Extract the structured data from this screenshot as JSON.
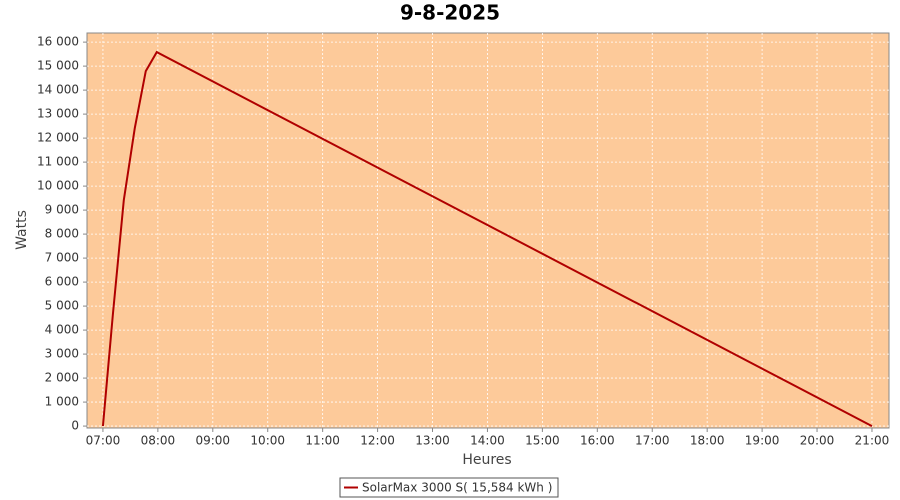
{
  "chart_data": {
    "type": "line",
    "title": "9-8-2025",
    "x_label": "Heures",
    "y_label": "Watts",
    "x": [
      7.0,
      7.18,
      7.38,
      7.58,
      7.78,
      7.98,
      21.0
    ],
    "series": [
      {
        "name": "SolarMax 3000 S( 15,584 kWh )",
        "color": "#b00000",
        "values": [
          0,
          4625,
          9417,
          12417,
          14792,
          15583,
          0
        ]
      }
    ],
    "xlim": [
      6.71,
      21.31
    ],
    "xticks": [
      {
        "value": 7,
        "label": "07:00"
      },
      {
        "value": 8,
        "label": "08:00"
      },
      {
        "value": 9,
        "label": "09:00"
      },
      {
        "value": 10,
        "label": "10:00"
      },
      {
        "value": 11,
        "label": "11:00"
      },
      {
        "value": 12,
        "label": "12:00"
      },
      {
        "value": 13,
        "label": "13:00"
      },
      {
        "value": 14,
        "label": "14:00"
      },
      {
        "value": 15,
        "label": "15:00"
      },
      {
        "value": 16,
        "label": "16:00"
      },
      {
        "value": 17,
        "label": "17:00"
      },
      {
        "value": 18,
        "label": "18:00"
      },
      {
        "value": 19,
        "label": "19:00"
      },
      {
        "value": 20,
        "label": "20:00"
      },
      {
        "value": 21,
        "label": "21:00"
      }
    ],
    "ylim": [
      -80,
      16380
    ],
    "yticks": [
      0,
      {
        "value": 1000,
        "label": "1 000"
      },
      {
        "value": 2000,
        "label": "2 000"
      },
      {
        "value": 3000,
        "label": "3 000"
      },
      {
        "value": 4000,
        "label": "4 000"
      },
      {
        "value": 5000,
        "label": "5 000"
      },
      {
        "value": 6000,
        "label": "6 000"
      },
      {
        "value": 7000,
        "label": "7 000"
      },
      {
        "value": 8000,
        "label": "8 000"
      },
      {
        "value": 9000,
        "label": "9 000"
      },
      {
        "value": 10000,
        "label": "10 000"
      },
      {
        "value": 11000,
        "label": "11 000"
      },
      {
        "value": 12000,
        "label": "12 000"
      },
      {
        "value": 13000,
        "label": "13 000"
      },
      {
        "value": 14000,
        "label": "14 000"
      },
      {
        "value": 15000,
        "label": "15 000"
      },
      {
        "value": 16000,
        "label": "16 000"
      }
    ],
    "grid": true,
    "background": "#fdca9a",
    "legend": "bottom"
  }
}
